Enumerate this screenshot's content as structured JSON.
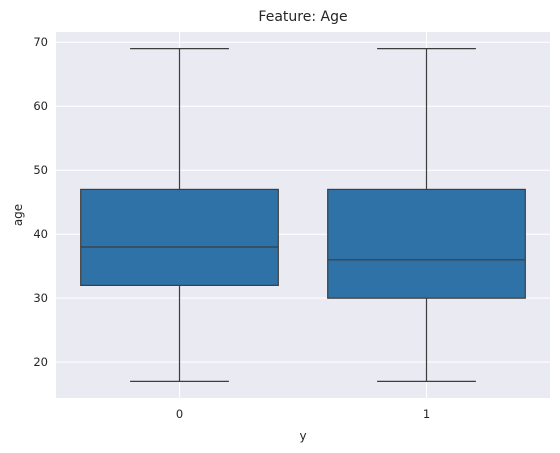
{
  "chart_data": {
    "type": "box",
    "title": "Feature: Age",
    "xlabel": "y",
    "ylabel": "age",
    "categories": [
      "0",
      "1"
    ],
    "boxes": [
      {
        "category": "0",
        "min": 17,
        "q1": 32,
        "median": 38,
        "q3": 47,
        "max": 69
      },
      {
        "category": "1",
        "min": 17,
        "q1": 30,
        "median": 36,
        "q3": 47,
        "max": 69
      }
    ],
    "ylim": [
      14.4,
      71.6
    ],
    "yticks": [
      20,
      30,
      40,
      50,
      60,
      70
    ],
    "grid": true,
    "legend": "none",
    "colors": {
      "box_fill": "#2e72a8",
      "line": "#3d3d3d",
      "plot_background": "#eaeaf2",
      "grid": "#ffffff"
    }
  }
}
